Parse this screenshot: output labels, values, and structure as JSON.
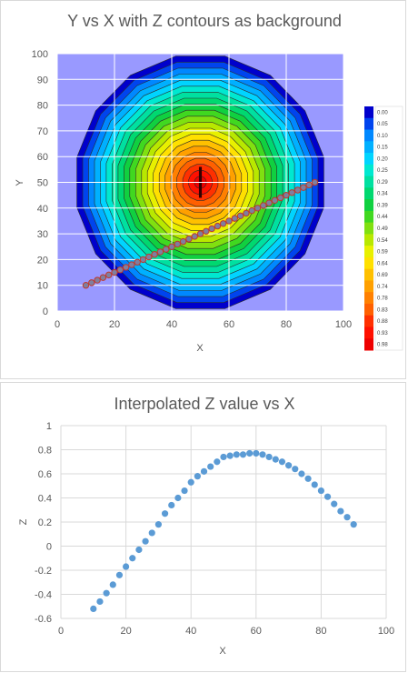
{
  "chart_data": [
    {
      "type": "contour-scatter",
      "title": "Y vs X with Z contours as background",
      "xlabel": "X",
      "ylabel": "Y",
      "xlim": [
        0,
        100
      ],
      "ylim": [
        0,
        100
      ],
      "xticks": [
        "0",
        "20",
        "40",
        "60",
        "80",
        "100"
      ],
      "yticks": [
        "0",
        "10",
        "20",
        "30",
        "40",
        "50",
        "60",
        "70",
        "80",
        "90",
        "100"
      ],
      "grid": true,
      "background_color": "#9999ff",
      "contour_center": [
        50,
        50
      ],
      "contour_levels": [
        "0.00",
        "0.05",
        "0.10",
        "0.15",
        "0.20",
        "0.25",
        "0.29",
        "0.34",
        "0.39",
        "0.44",
        "0.49",
        "0.54",
        "0.59",
        "0.64",
        "0.69",
        "0.74",
        "0.78",
        "0.83",
        "0.88",
        "0.93",
        "0.98"
      ],
      "colorbar_colors": [
        "#0000cc",
        "#0044ee",
        "#0088ff",
        "#00b0ff",
        "#00d4ff",
        "#00e8d0",
        "#00e0a0",
        "#00d870",
        "#10d040",
        "#40d820",
        "#80e010",
        "#b8e800",
        "#e8f000",
        "#ffe000",
        "#ffc000",
        "#ffa000",
        "#ff8000",
        "#ff6000",
        "#ff3000",
        "#ff1000",
        "#ee0000"
      ],
      "series": [
        {
          "marker_color": "#7f7f9f",
          "marker_edge": "#c0392b",
          "x": [
            10,
            12,
            14,
            16,
            18,
            20,
            22,
            24,
            26,
            28,
            30,
            32,
            34,
            36,
            38,
            40,
            42,
            44,
            46,
            48,
            50,
            52,
            54,
            56,
            58,
            60,
            62,
            64,
            66,
            68,
            70,
            72,
            74,
            76,
            78,
            80,
            82,
            84,
            86,
            88,
            90
          ],
          "y": [
            10,
            11,
            12,
            13,
            14,
            15,
            16,
            17,
            18,
            19,
            20,
            21,
            22,
            23,
            24,
            25,
            26,
            27,
            28,
            29,
            30,
            31,
            32,
            33,
            34,
            35,
            36,
            37,
            38,
            39,
            40,
            41,
            42,
            43,
            44,
            45,
            46,
            47,
            48,
            49,
            50
          ]
        }
      ]
    },
    {
      "type": "scatter",
      "title": "Interpolated Z value vs X",
      "xlabel": "X",
      "ylabel": "Z",
      "xlim": [
        0,
        100
      ],
      "ylim": [
        -0.6,
        1
      ],
      "xticks": [
        "0",
        "20",
        "40",
        "60",
        "80",
        "100"
      ],
      "yticks": [
        "-0.6",
        "-0.4",
        "-0.2",
        "0",
        "0.2",
        "0.4",
        "0.6",
        "0.8",
        "1"
      ],
      "grid": true,
      "series": [
        {
          "marker_color": "#5b9bd5",
          "x": [
            10,
            12,
            14,
            16,
            18,
            20,
            22,
            24,
            26,
            28,
            30,
            32,
            34,
            36,
            38,
            40,
            42,
            44,
            46,
            48,
            50,
            52,
            54,
            56,
            58,
            60,
            62,
            64,
            66,
            68,
            70,
            72,
            74,
            76,
            78,
            80,
            82,
            84,
            86,
            88,
            90
          ],
          "y": [
            -0.52,
            -0.46,
            -0.39,
            -0.32,
            -0.24,
            -0.17,
            -0.1,
            -0.03,
            0.04,
            0.11,
            0.18,
            0.27,
            0.34,
            0.4,
            0.46,
            0.53,
            0.58,
            0.62,
            0.66,
            0.7,
            0.74,
            0.75,
            0.76,
            0.76,
            0.77,
            0.77,
            0.76,
            0.74,
            0.72,
            0.7,
            0.67,
            0.64,
            0.6,
            0.56,
            0.51,
            0.46,
            0.41,
            0.35,
            0.29,
            0.24,
            0.18
          ]
        }
      ]
    }
  ]
}
